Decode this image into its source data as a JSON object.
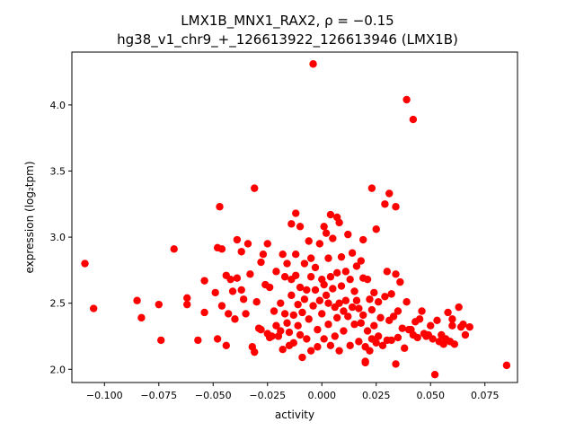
{
  "chart_data": {
    "type": "scatter",
    "title_line1": "LMX1B_MNX1_RAX2, ρ = −0.15",
    "title_line2": "hg38_v1_chr9_+_126613922_126613946 (LMX1B)",
    "xlabel": "activity",
    "ylabel": "expression (log₂tpm)",
    "xlim": [
      -0.115,
      0.09
    ],
    "ylim": [
      1.9,
      4.4
    ],
    "xticks": [
      -0.1,
      -0.075,
      -0.05,
      -0.025,
      0.0,
      0.025,
      0.05,
      0.075
    ],
    "xtick_labels": [
      "−0.100",
      "−0.075",
      "−0.050",
      "−0.025",
      "0.000",
      "0.025",
      "0.050",
      "0.075"
    ],
    "yticks": [
      2.0,
      2.5,
      3.0,
      3.5,
      4.0
    ],
    "ytick_labels": [
      "2.0",
      "2.5",
      "3.0",
      "3.5",
      "4.0"
    ],
    "marker_color": "#ff0000",
    "grid": false,
    "points": [
      [
        -0.109,
        2.8
      ],
      [
        -0.105,
        2.46
      ],
      [
        -0.085,
        2.52
      ],
      [
        -0.083,
        2.39
      ],
      [
        -0.075,
        2.49
      ],
      [
        -0.074,
        2.22
      ],
      [
        -0.068,
        2.91
      ],
      [
        -0.062,
        2.54
      ],
      [
        -0.062,
        2.49
      ],
      [
        -0.057,
        2.22
      ],
      [
        -0.054,
        2.67
      ],
      [
        -0.054,
        2.43
      ],
      [
        -0.049,
        2.58
      ],
      [
        -0.048,
        2.92
      ],
      [
        -0.047,
        3.23
      ],
      [
        -0.048,
        2.23
      ],
      [
        -0.046,
        2.48
      ],
      [
        -0.046,
        2.91
      ],
      [
        -0.044,
        2.71
      ],
      [
        -0.044,
        2.18
      ],
      [
        -0.043,
        2.42
      ],
      [
        -0.042,
        2.68
      ],
      [
        -0.041,
        2.59
      ],
      [
        -0.04,
        2.38
      ],
      [
        -0.039,
        2.98
      ],
      [
        -0.039,
        2.69
      ],
      [
        -0.037,
        2.89
      ],
      [
        -0.037,
        2.6
      ],
      [
        -0.036,
        2.53
      ],
      [
        -0.035,
        2.42
      ],
      [
        -0.034,
        2.95
      ],
      [
        -0.033,
        2.72
      ],
      [
        -0.032,
        2.17
      ],
      [
        -0.031,
        3.37
      ],
      [
        -0.031,
        2.13
      ],
      [
        -0.03,
        2.51
      ],
      [
        -0.029,
        2.31
      ],
      [
        -0.028,
        2.81
      ],
      [
        -0.028,
        2.3
      ],
      [
        -0.027,
        2.87
      ],
      [
        -0.026,
        2.64
      ],
      [
        -0.025,
        2.27
      ],
      [
        -0.025,
        2.95
      ],
      [
        -0.024,
        2.62
      ],
      [
        -0.024,
        2.24
      ],
      [
        -0.023,
        2.25
      ],
      [
        -0.022,
        2.44
      ],
      [
        -0.021,
        2.33
      ],
      [
        -0.021,
        2.74
      ],
      [
        -0.02,
        2.25
      ],
      [
        -0.019,
        2.5
      ],
      [
        -0.019,
        2.29
      ],
      [
        -0.018,
        2.87
      ],
      [
        -0.018,
        2.15
      ],
      [
        -0.017,
        2.7
      ],
      [
        -0.017,
        2.42
      ],
      [
        -0.016,
        2.8
      ],
      [
        -0.016,
        2.35
      ],
      [
        -0.015,
        2.28
      ],
      [
        -0.015,
        2.18
      ],
      [
        -0.014,
        3.1
      ],
      [
        -0.014,
        2.68
      ],
      [
        -0.014,
        2.56
      ],
      [
        -0.013,
        2.41
      ],
      [
        -0.013,
        2.2
      ],
      [
        -0.012,
        3.18
      ],
      [
        -0.012,
        2.87
      ],
      [
        -0.012,
        2.71
      ],
      [
        -0.011,
        2.49
      ],
      [
        -0.011,
        2.33
      ],
      [
        -0.01,
        3.08
      ],
      [
        -0.01,
        2.62
      ],
      [
        -0.01,
        2.26
      ],
      [
        -0.009,
        2.09
      ],
      [
        -0.009,
        2.43
      ],
      [
        -0.008,
        2.8
      ],
      [
        -0.008,
        2.53
      ],
      [
        -0.007,
        2.6
      ],
      [
        -0.007,
        2.23
      ],
      [
        -0.006,
        2.97
      ],
      [
        -0.006,
        2.38
      ],
      [
        -0.005,
        2.84
      ],
      [
        -0.005,
        2.7
      ],
      [
        -0.005,
        2.14
      ],
      [
        -0.004,
        4.31
      ],
      [
        -0.004,
        2.48
      ],
      [
        -0.003,
        2.77
      ],
      [
        -0.003,
        2.6
      ],
      [
        -0.002,
        2.3
      ],
      [
        -0.002,
        2.17
      ],
      [
        -0.001,
        2.95
      ],
      [
        -0.001,
        2.52
      ],
      [
        0.0,
        2.68
      ],
      [
        0.0,
        2.42
      ],
      [
        0.001,
        3.08
      ],
      [
        0.001,
        2.64
      ],
      [
        0.001,
        2.23
      ],
      [
        0.002,
        3.03
      ],
      [
        0.002,
        2.56
      ],
      [
        0.003,
        2.84
      ],
      [
        0.003,
        2.5
      ],
      [
        0.003,
        2.34
      ],
      [
        0.004,
        3.17
      ],
      [
        0.004,
        2.7
      ],
      [
        0.004,
        2.18
      ],
      [
        0.005,
        2.99
      ],
      [
        0.005,
        2.61
      ],
      [
        0.006,
        2.47
      ],
      [
        0.006,
        2.25
      ],
      [
        0.007,
        3.15
      ],
      [
        0.007,
        2.73
      ],
      [
        0.007,
        2.39
      ],
      [
        0.008,
        3.11
      ],
      [
        0.008,
        2.14
      ],
      [
        0.008,
        2.5
      ],
      [
        0.009,
        2.85
      ],
      [
        0.009,
        2.63
      ],
      [
        0.01,
        2.44
      ],
      [
        0.01,
        2.29
      ],
      [
        0.011,
        2.74
      ],
      [
        0.011,
        2.52
      ],
      [
        0.012,
        3.02
      ],
      [
        0.012,
        2.4
      ],
      [
        0.013,
        2.68
      ],
      [
        0.013,
        2.18
      ],
      [
        0.014,
        2.88
      ],
      [
        0.014,
        2.47
      ],
      [
        0.015,
        2.59
      ],
      [
        0.015,
        2.34
      ],
      [
        0.016,
        2.78
      ],
      [
        0.016,
        2.52
      ],
      [
        0.017,
        2.46
      ],
      [
        0.017,
        2.21
      ],
      [
        0.018,
        2.82
      ],
      [
        0.018,
        2.35
      ],
      [
        0.019,
        2.98
      ],
      [
        0.019,
        2.69
      ],
      [
        0.019,
        2.41
      ],
      [
        0.02,
        2.17
      ],
      [
        0.02,
        2.06
      ],
      [
        0.02,
        2.05
      ],
      [
        0.021,
        2.68
      ],
      [
        0.021,
        2.29
      ],
      [
        0.022,
        2.53
      ],
      [
        0.022,
        2.14
      ],
      [
        0.023,
        3.37
      ],
      [
        0.023,
        2.45
      ],
      [
        0.023,
        2.23
      ],
      [
        0.024,
        2.58
      ],
      [
        0.024,
        2.33
      ],
      [
        0.025,
        3.06
      ],
      [
        0.025,
        2.2
      ],
      [
        0.026,
        2.51
      ],
      [
        0.026,
        2.25
      ],
      [
        0.027,
        2.39
      ],
      [
        0.028,
        2.18
      ],
      [
        0.029,
        3.25
      ],
      [
        0.029,
        2.55
      ],
      [
        0.03,
        2.74
      ],
      [
        0.03,
        2.22
      ],
      [
        0.031,
        3.33
      ],
      [
        0.031,
        2.37
      ],
      [
        0.032,
        2.57
      ],
      [
        0.032,
        2.22
      ],
      [
        0.033,
        2.4
      ],
      [
        0.034,
        3.23
      ],
      [
        0.034,
        2.04
      ],
      [
        0.034,
        2.72
      ],
      [
        0.035,
        2.44
      ],
      [
        0.035,
        2.24
      ],
      [
        0.036,
        2.66
      ],
      [
        0.037,
        2.31
      ],
      [
        0.038,
        2.16
      ],
      [
        0.039,
        4.04
      ],
      [
        0.039,
        2.51
      ],
      [
        0.04,
        2.3
      ],
      [
        0.041,
        2.3
      ],
      [
        0.042,
        2.26
      ],
      [
        0.042,
        3.89
      ],
      [
        0.043,
        2.36
      ],
      [
        0.044,
        2.24
      ],
      [
        0.045,
        2.38
      ],
      [
        0.046,
        2.44
      ],
      [
        0.047,
        2.27
      ],
      [
        0.048,
        2.25
      ],
      [
        0.049,
        2.26
      ],
      [
        0.05,
        2.33
      ],
      [
        0.051,
        2.23
      ],
      [
        0.052,
        1.96
      ],
      [
        0.053,
        2.37
      ],
      [
        0.054,
        2.21
      ],
      [
        0.055,
        2.26
      ],
      [
        0.056,
        2.19
      ],
      [
        0.057,
        2.23
      ],
      [
        0.058,
        2.43
      ],
      [
        0.059,
        2.21
      ],
      [
        0.06,
        2.38
      ],
      [
        0.06,
        2.33
      ],
      [
        0.061,
        2.19
      ],
      [
        0.063,
        2.47
      ],
      [
        0.064,
        2.32
      ],
      [
        0.065,
        2.34
      ],
      [
        0.066,
        2.26
      ],
      [
        0.068,
        2.32
      ],
      [
        0.085,
        2.03
      ]
    ]
  }
}
